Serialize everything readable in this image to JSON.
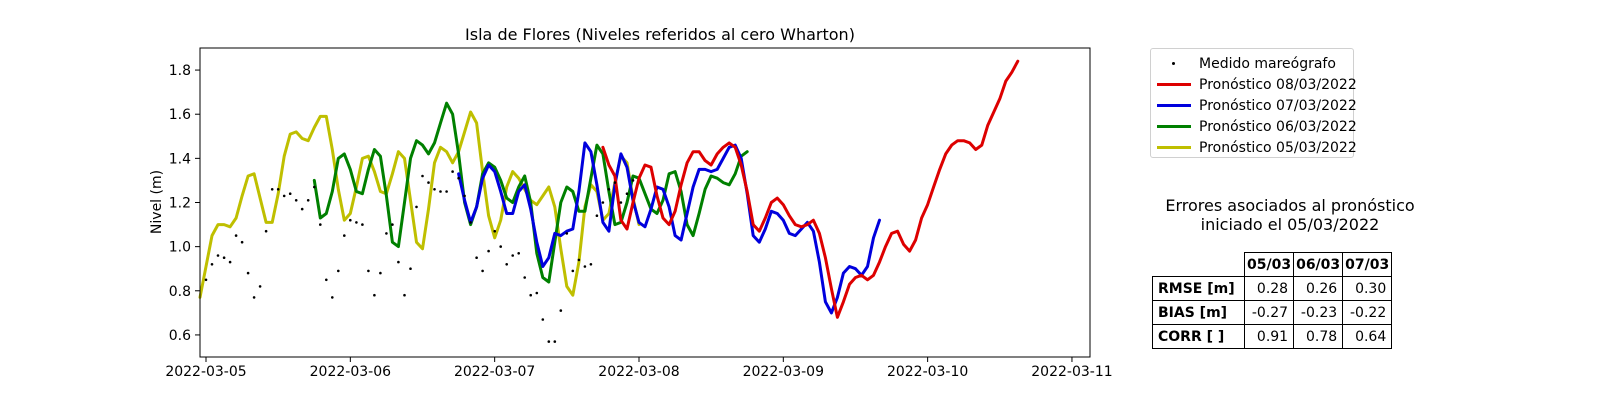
{
  "chart_data": {
    "type": "line",
    "title": "Isla de Flores (Niveles referidos al cero Wharton)",
    "ylabel": "Nivel (m)",
    "xlabel": "",
    "xlim": [
      "2022-03-04T23:00",
      "2022-03-11T03:00"
    ],
    "ylim": [
      0.5,
      1.9
    ],
    "y_ticks": [
      0.6,
      0.8,
      1.0,
      1.2,
      1.4,
      1.6,
      1.8
    ],
    "x_ticks": [
      "2022-03-05",
      "2022-03-06",
      "2022-03-07",
      "2022-03-08",
      "2022-03-09",
      "2022-03-10",
      "2022-03-11"
    ],
    "legend_position": "outside-right-top",
    "grid": false,
    "series": [
      {
        "name": "Medido mareógrafo",
        "kind": "scatter",
        "color": "#000000",
        "start": "2022-03-05T00:00",
        "step_hours": 1,
        "values": [
          0.85,
          0.92,
          0.96,
          0.95,
          0.93,
          1.05,
          1.02,
          0.88,
          0.77,
          0.82,
          1.07,
          1.26,
          1.26,
          1.23,
          1.24,
          1.21,
          1.17,
          1.21,
          1.27,
          1.1,
          0.85,
          0.77,
          0.89,
          1.05,
          1.12,
          1.11,
          1.1,
          0.89,
          0.78,
          0.88,
          1.06,
          1.1,
          0.93,
          0.78,
          0.9,
          1.18,
          1.32,
          1.29,
          1.26,
          1.25,
          1.25,
          1.34,
          1.31,
          1.23,
          1.11,
          0.95,
          0.89,
          0.98,
          1.07,
          1.0,
          0.92,
          0.96,
          0.97,
          0.86,
          0.78,
          0.79,
          0.67,
          0.57,
          0.57,
          0.71,
          1.06,
          0.89,
          0.94,
          0.91,
          0.92,
          1.14,
          1.2,
          1.26,
          1.29,
          1.2,
          1.24,
          1.3
        ]
      },
      {
        "name": "Pronóstico 08/03/2022",
        "color": "#dd0000",
        "start": "2022-03-07T18:00",
        "step_hours": 1,
        "values": [
          1.45,
          1.37,
          1.32,
          1.12,
          1.08,
          1.2,
          1.31,
          1.37,
          1.36,
          1.23,
          1.13,
          1.1,
          1.16,
          1.28,
          1.38,
          1.43,
          1.43,
          1.39,
          1.37,
          1.42,
          1.45,
          1.47,
          1.45,
          1.37,
          1.25,
          1.1,
          1.07,
          1.13,
          1.2,
          1.22,
          1.19,
          1.14,
          1.1,
          1.09,
          1.1,
          1.12,
          1.06,
          0.95,
          0.81,
          0.68,
          0.75,
          0.83,
          0.86,
          0.87,
          0.85,
          0.87,
          0.93,
          1.0,
          1.06,
          1.07,
          1.01,
          0.98,
          1.03,
          1.13,
          1.19,
          1.27,
          1.35,
          1.42,
          1.46,
          1.48,
          1.48,
          1.47,
          1.44,
          1.46,
          1.55,
          1.61,
          1.67,
          1.75,
          1.79,
          1.84
        ]
      },
      {
        "name": "Pronóstico 07/03/2022",
        "color": "#0000dd",
        "start": "2022-03-06T18:00",
        "step_hours": 1,
        "values": [
          1.33,
          1.21,
          1.11,
          1.18,
          1.31,
          1.37,
          1.34,
          1.25,
          1.15,
          1.15,
          1.25,
          1.28,
          1.17,
          1.02,
          0.91,
          0.95,
          1.06,
          1.05,
          1.07,
          1.08,
          1.25,
          1.47,
          1.43,
          1.28,
          1.11,
          1.07,
          1.28,
          1.42,
          1.36,
          1.21,
          1.11,
          1.09,
          1.17,
          1.27,
          1.26,
          1.18,
          1.05,
          1.03,
          1.15,
          1.27,
          1.35,
          1.35,
          1.34,
          1.35,
          1.4,
          1.45,
          1.46,
          1.4,
          1.24,
          1.05,
          1.02,
          1.08,
          1.16,
          1.15,
          1.12,
          1.06,
          1.05,
          1.08,
          1.11,
          1.07,
          0.93,
          0.75,
          0.7,
          0.77,
          0.88,
          0.91,
          0.9,
          0.87,
          0.91,
          1.04,
          1.12
        ]
      },
      {
        "name": "Pronóstico 06/03/2022",
        "color": "#008000",
        "start": "2022-03-05T18:00",
        "step_hours": 1,
        "values": [
          1.3,
          1.13,
          1.15,
          1.25,
          1.4,
          1.42,
          1.35,
          1.25,
          1.24,
          1.35,
          1.44,
          1.41,
          1.23,
          1.02,
          1.0,
          1.2,
          1.4,
          1.48,
          1.46,
          1.42,
          1.47,
          1.56,
          1.65,
          1.6,
          1.42,
          1.2,
          1.1,
          1.18,
          1.33,
          1.38,
          1.36,
          1.3,
          1.22,
          1.2,
          1.27,
          1.32,
          1.2,
          0.97,
          0.86,
          0.84,
          1.02,
          1.2,
          1.27,
          1.25,
          1.16,
          1.16,
          1.31,
          1.46,
          1.42,
          1.25,
          1.1,
          1.11,
          1.2,
          1.32,
          1.31,
          1.24,
          1.17,
          1.15,
          1.21,
          1.33,
          1.34,
          1.25,
          1.1,
          1.05,
          1.15,
          1.26,
          1.32,
          1.31,
          1.29,
          1.28,
          1.33,
          1.41,
          1.43
        ]
      },
      {
        "name": "Pronóstico 05/03/2022",
        "color": "#bfbf00",
        "start": "2022-03-04T23:00",
        "step_hours": 1,
        "values": [
          0.77,
          0.91,
          1.05,
          1.1,
          1.1,
          1.09,
          1.13,
          1.23,
          1.32,
          1.33,
          1.22,
          1.11,
          1.11,
          1.24,
          1.41,
          1.51,
          1.52,
          1.49,
          1.48,
          1.54,
          1.59,
          1.59,
          1.44,
          1.26,
          1.12,
          1.15,
          1.27,
          1.4,
          1.41,
          1.34,
          1.25,
          1.24,
          1.33,
          1.43,
          1.4,
          1.21,
          1.02,
          0.99,
          1.17,
          1.38,
          1.45,
          1.43,
          1.38,
          1.43,
          1.52,
          1.61,
          1.56,
          1.34,
          1.14,
          1.04,
          1.12,
          1.27,
          1.34,
          1.31,
          1.26,
          1.21,
          1.19,
          1.23,
          1.27,
          1.18,
          0.99,
          0.82,
          0.78,
          0.93,
          1.18,
          1.28,
          1.25,
          1.12,
          1.15,
          1.29,
          1.41,
          1.38,
          1.22,
          1.1
        ]
      }
    ]
  },
  "error_table": {
    "title_line1": "Errores asociados al pronóstico",
    "title_line2": "iniciado el 05/03/2022",
    "columns": [
      "05/03",
      "06/03",
      "07/03"
    ],
    "rows": [
      {
        "label": "RMSE [m]",
        "values": [
          "0.28",
          "0.26",
          "0.30"
        ]
      },
      {
        "label": "BIAS [m]",
        "values": [
          "-0.27",
          "-0.23",
          "-0.22"
        ]
      },
      {
        "label": "CORR [ ]",
        "values": [
          "0.91",
          "0.78",
          "0.64"
        ]
      }
    ]
  }
}
